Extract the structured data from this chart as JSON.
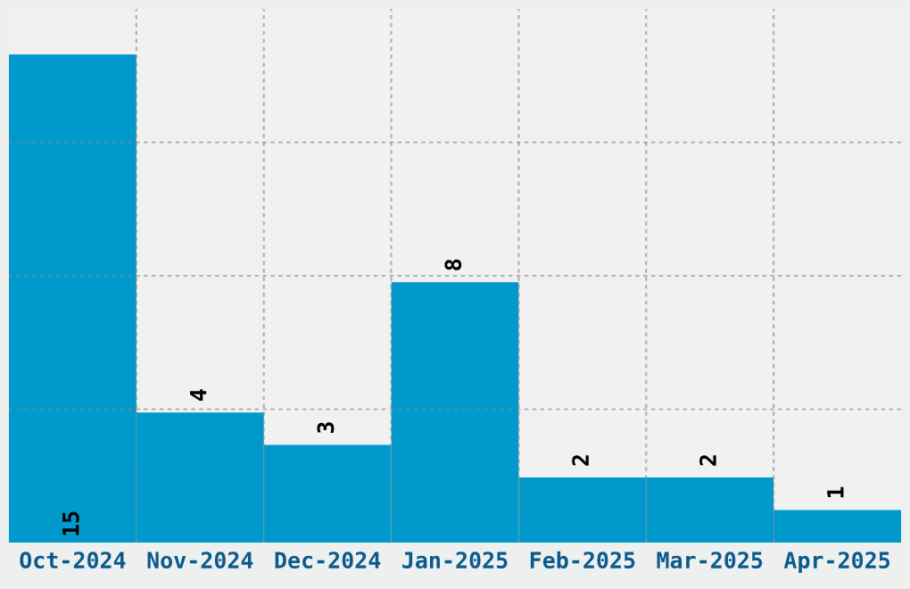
{
  "chart_data": {
    "type": "bar",
    "categories": [
      "Oct-2024",
      "Nov-2024",
      "Dec-2024",
      "Jan-2025",
      "Feb-2025",
      "Mar-2025",
      "Apr-2025"
    ],
    "values": [
      15,
      4,
      3,
      8,
      2,
      2,
      1
    ],
    "color": "#0099cc",
    "ylim": [
      0,
      16.4
    ],
    "yticks": [
      {
        "value": 4.1,
        "label": null
      },
      {
        "value": 8.2,
        "label": null
      },
      {
        "value": 12.3,
        "label": null
      }
    ],
    "tick_labels": "x",
    "grid": true,
    "data_labels": true
  }
}
